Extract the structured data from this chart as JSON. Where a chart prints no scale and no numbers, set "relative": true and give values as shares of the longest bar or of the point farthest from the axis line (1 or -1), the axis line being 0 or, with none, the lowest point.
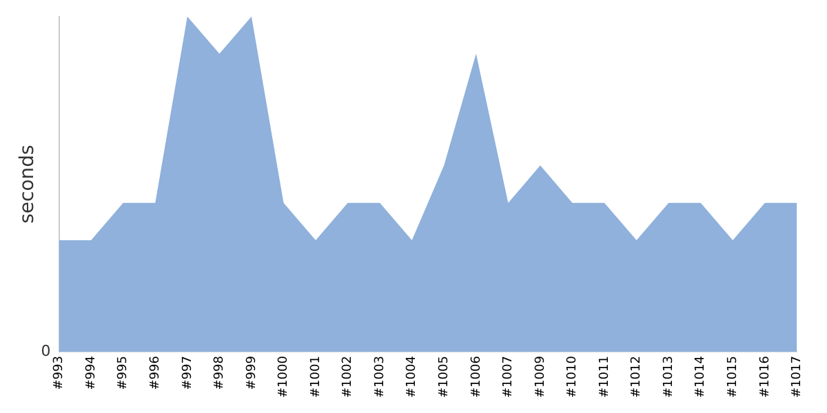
{
  "chart_data": {
    "type": "area",
    "relative": true,
    "ylabel": "seconds",
    "color": "#8fb1db",
    "grid": false,
    "legend": false,
    "categories": [
      "#993",
      "#994",
      "#995",
      "#996",
      "#997",
      "#998",
      "#999",
      "#1000",
      "#1001",
      "#1002",
      "#1003",
      "#1004",
      "#1005",
      "#1006",
      "#1007",
      "#1009",
      "#1010",
      "#1011",
      "#1012",
      "#1013",
      "#1014",
      "#1015",
      "#1016",
      "#1017"
    ],
    "values": [
      0.333,
      0.333,
      0.444,
      0.444,
      1,
      0.889,
      1,
      0.444,
      0.333,
      0.444,
      0.444,
      0.333,
      0.556,
      0.889,
      0.444,
      0.556,
      0.444,
      0.444,
      0.333,
      0.444,
      0.444,
      0.333,
      0.444,
      0.444
    ],
    "annotations": [
      "0"
    ]
  }
}
